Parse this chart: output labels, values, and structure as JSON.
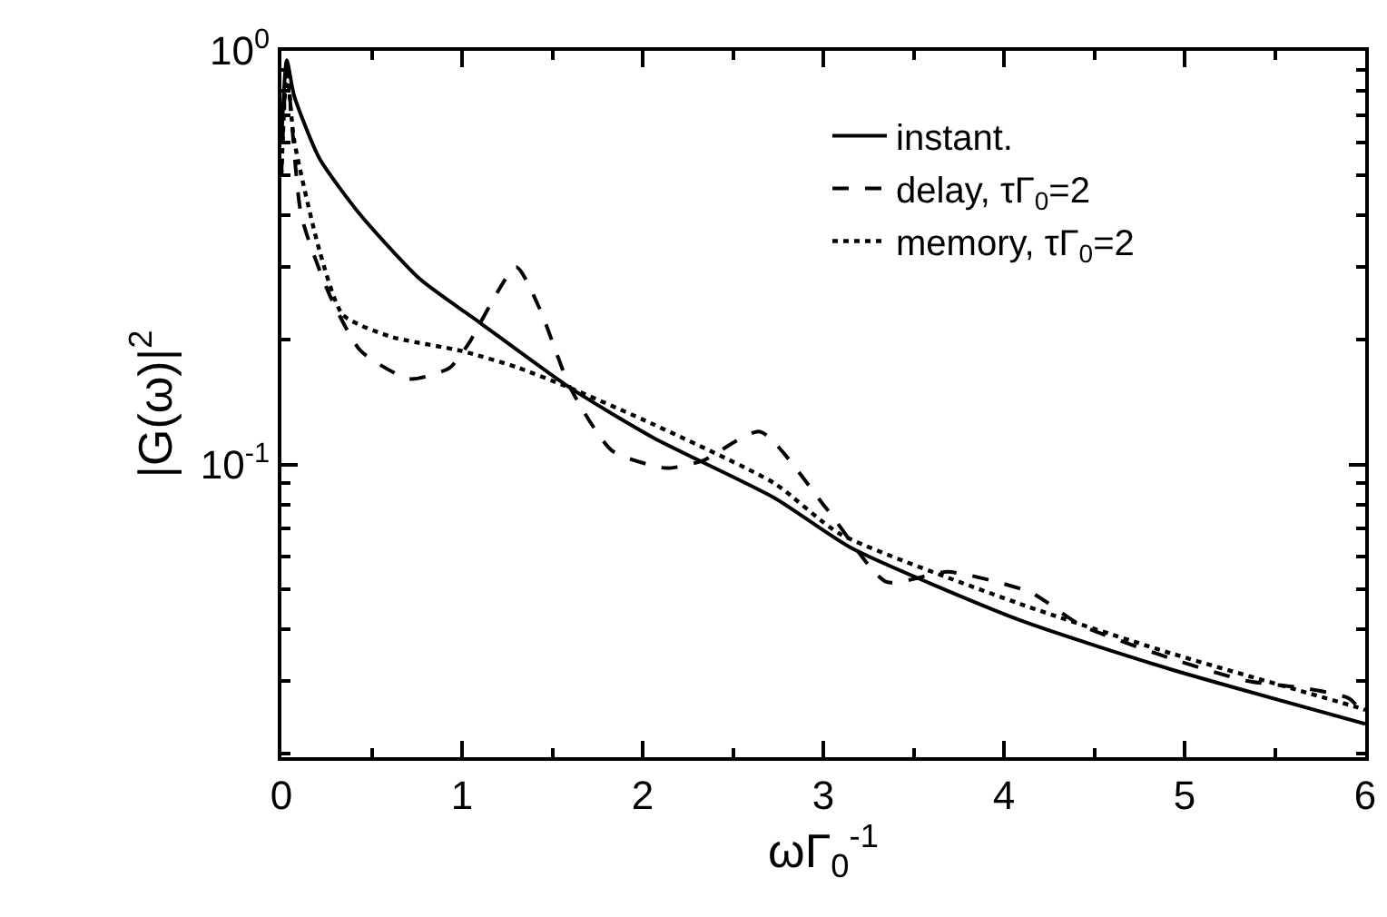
{
  "chart_data": {
    "type": "line",
    "xlabel": "ωΓ$_{0}$$^{-1}$",
    "ylabel": "|G(ω)|$^{2}$",
    "log": "y",
    "legend": "top right",
    "marker": "none",
    "xlim": [
      0,
      6
    ],
    "xticks": [
      0,
      1,
      2,
      3,
      4,
      5,
      6
    ],
    "ylim": [
      0.0196,
      1
    ],
    "yticks": [
      {
        "value": 1,
        "label": "10$^{0}$"
      },
      {
        "value": 0.1,
        "label": "10$^{-1}$"
      }
    ],
    "series": [
      {
        "name": "instant.",
        "color": "#000000",
        "line_style": "solid",
        "x": [
          0,
          0.03,
          0.07,
          0.21,
          0.44,
          0.77,
          1.1,
          1.6,
          2.06,
          2.73,
          3.15,
          4.09,
          4.92,
          6.0
        ],
        "values": [
          0.6,
          0.95,
          0.78,
          0.55,
          0.4,
          0.28,
          0.22,
          0.153,
          0.116,
          0.083,
          0.063,
          0.042,
          0.032,
          0.0236
        ]
      },
      {
        "name": "delay, τΓ$_{0}$=2",
        "color": "#000000",
        "line_style": "dashed",
        "x": [
          0,
          0.03,
          0.11,
          0.27,
          0.44,
          0.71,
          0.93,
          1.03,
          1.3,
          1.43,
          1.6,
          1.83,
          2.13,
          2.33,
          2.65,
          3.02,
          3.35,
          3.69,
          4.15,
          4.42,
          4.92,
          5.34,
          5.68,
          5.91,
          6.0
        ],
        "values": [
          0.5,
          0.9,
          0.4,
          0.255,
          0.188,
          0.161,
          0.171,
          0.194,
          0.3,
          0.238,
          0.153,
          0.108,
          0.098,
          0.102,
          0.12,
          0.078,
          0.052,
          0.055,
          0.049,
          0.041,
          0.034,
          0.03,
          0.0287,
          0.0272,
          0.0247
        ]
      },
      {
        "name": "memory, τΓ$_{0}$=2",
        "color": "#000000",
        "line_style": "dotted",
        "x": [
          0,
          0.03,
          0.07,
          0.21,
          0.34,
          0.6,
          1.0,
          1.3,
          1.6,
          2.06,
          2.73,
          3.09,
          4.09,
          4.92,
          5.94,
          6.0
        ],
        "values": [
          0.5,
          0.9,
          0.61,
          0.33,
          0.23,
          0.204,
          0.188,
          0.172,
          0.153,
          0.125,
          0.09,
          0.068,
          0.046,
          0.035,
          0.026,
          0.0255
        ]
      }
    ]
  }
}
